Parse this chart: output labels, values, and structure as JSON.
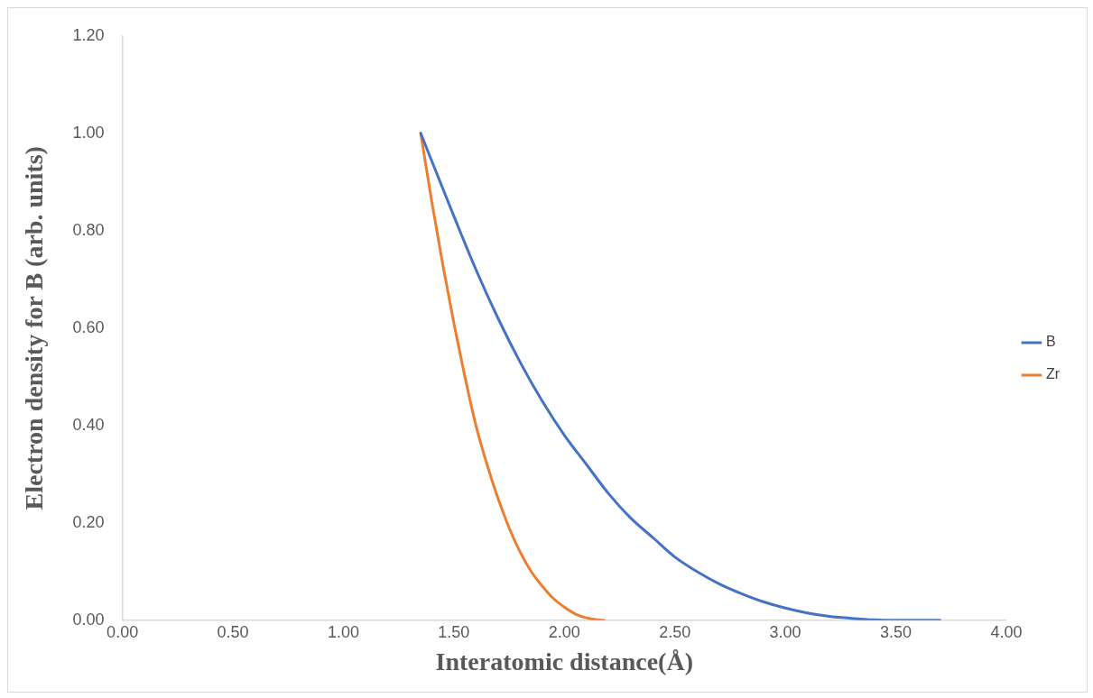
{
  "chart_data": {
    "type": "line",
    "xlabel": "Interatomic distance(Å)",
    "ylabel": "Electron density for B (arb. units)",
    "xlim": [
      0,
      4
    ],
    "xticks": [
      {
        "value": 0,
        "label": "0.00"
      },
      {
        "value": 0.5,
        "label": "0.50"
      },
      {
        "value": 1,
        "label": "1.00"
      },
      {
        "value": 1.5,
        "label": "1.50"
      },
      {
        "value": 2,
        "label": "2.00"
      },
      {
        "value": 2.5,
        "label": "2.50"
      },
      {
        "value": 3,
        "label": "3.00"
      },
      {
        "value": 3.5,
        "label": "3.50"
      },
      {
        "value": 4,
        "label": "4.00"
      }
    ],
    "ylim": [
      0,
      1.2
    ],
    "yticks": [
      {
        "value": 0,
        "label": "0.00"
      },
      {
        "value": 0.2,
        "label": "0.20"
      },
      {
        "value": 0.4,
        "label": "0.40"
      },
      {
        "value": 0.6,
        "label": "0.60"
      },
      {
        "value": 0.8,
        "label": "0.80"
      },
      {
        "value": 1,
        "label": "1.00"
      },
      {
        "value": 1.2,
        "label": "1.20"
      }
    ],
    "grid": false,
    "legend": "right",
    "marker": "none",
    "line_style": "solid",
    "series": [
      {
        "name": "B",
        "color": "#4472c4",
        "x": [
          1.35,
          1.5,
          1.6,
          1.7,
          1.8,
          1.9,
          2.0,
          2.1,
          2.2,
          2.3,
          2.4,
          2.5,
          2.6,
          2.7,
          2.8,
          2.9,
          3.0,
          3.1,
          3.2,
          3.3,
          3.4,
          3.5,
          3.6,
          3.7
        ],
        "values": [
          1.0,
          0.83,
          0.72,
          0.62,
          0.53,
          0.45,
          0.38,
          0.32,
          0.26,
          0.21,
          0.17,
          0.13,
          0.1,
          0.075,
          0.055,
          0.038,
          0.025,
          0.015,
          0.008,
          0.004,
          0.001,
          0,
          0,
          0
        ]
      },
      {
        "name": "Zr",
        "color": "#ed7d31",
        "x": [
          1.35,
          1.4,
          1.45,
          1.5,
          1.55,
          1.6,
          1.65,
          1.7,
          1.75,
          1.8,
          1.85,
          1.9,
          1.95,
          2.0,
          2.05,
          2.1,
          2.15,
          2.18
        ],
        "values": [
          1.0,
          0.86,
          0.73,
          0.61,
          0.5,
          0.4,
          0.32,
          0.25,
          0.19,
          0.14,
          0.1,
          0.07,
          0.045,
          0.027,
          0.013,
          0.005,
          0.001,
          0
        ]
      }
    ]
  }
}
